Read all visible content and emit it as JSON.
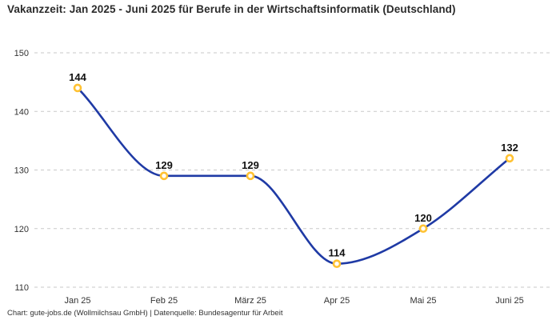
{
  "title": "Vakanzzeit: Jan 2025 - Juni 2025 für Berufe in der Wirtschaftsinformatik (Deutschland)",
  "footer": "Chart: gute-jobs.de (Wollmilchsau GmbH) | Datenquelle: Bundesagentur für Arbeit",
  "colors": {
    "line": "#1f3aa5",
    "marker_ring": "#ffc233",
    "marker_fill": "#ffffff",
    "grid": "#c9c9c9",
    "tick_text": "#333333",
    "label_text": "#111111",
    "background": "#ffffff"
  },
  "chart_data": {
    "type": "line",
    "title": "Vakanzzeit: Jan 2025 - Juni 2025 für Berufe in der Wirtschaftsinformatik (Deutschland)",
    "categories": [
      "Jan 25",
      "Feb 25",
      "März 25",
      "Apr 25",
      "Mai 25",
      "Juni 25"
    ],
    "series": [
      {
        "name": "Vakanzzeit",
        "values": [
          144,
          129,
          129,
          114,
          120,
          132
        ]
      }
    ],
    "data_labels": [
      144,
      129,
      129,
      114,
      120,
      132
    ],
    "xlabel": "",
    "ylabel": "",
    "ylim": [
      110,
      150
    ],
    "yticks": [
      110,
      120,
      130,
      140,
      150
    ],
    "grid": "horizontal-dashed",
    "legend": "none",
    "curve": "monotone",
    "marker": "open-circle"
  }
}
